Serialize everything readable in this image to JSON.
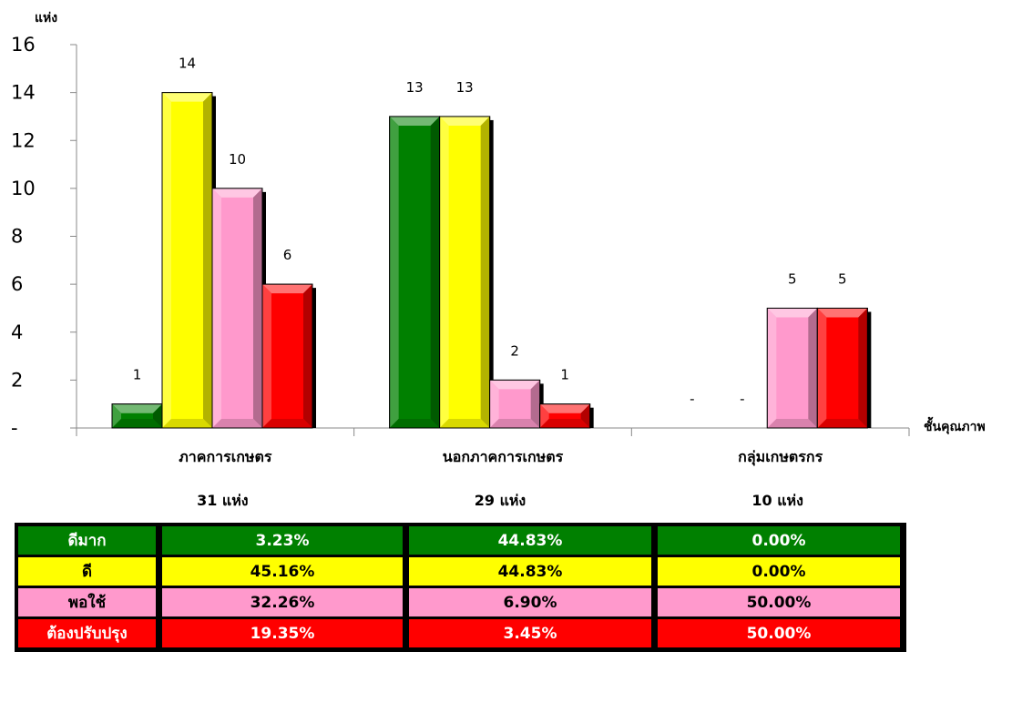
{
  "chart_data": {
    "type": "bar",
    "ylabel": "แห่ง",
    "xlabel": "ชั้นคุณภาพ",
    "ylim": [
      0,
      16
    ],
    "yticks": [
      "-",
      "2",
      "4",
      "6",
      "8",
      "10",
      "12",
      "14",
      "16"
    ],
    "categories": [
      "ภาคการเกษตร",
      "นอกภาคการเกษตร",
      "กลุ่มเกษตรกร"
    ],
    "category_totals": [
      "31  แห่ง",
      "29  แห่ง",
      "10  แห่ง"
    ],
    "series": [
      {
        "name": "ดีมาก",
        "color": "#008000",
        "values": [
          1,
          13,
          0
        ],
        "labels": [
          "1",
          "13",
          "-"
        ]
      },
      {
        "name": "ดี",
        "color": "#ffff00",
        "values": [
          14,
          13,
          0
        ],
        "labels": [
          "14",
          "13",
          "-"
        ]
      },
      {
        "name": "พอใช้",
        "color": "#ff99cc",
        "values": [
          10,
          2,
          5
        ],
        "labels": [
          "10",
          "2",
          "5"
        ]
      },
      {
        "name": "ต้องปรับปรุง",
        "color": "#ff0000",
        "values": [
          6,
          1,
          5
        ],
        "labels": [
          "6",
          "1",
          "5"
        ]
      }
    ]
  },
  "table": {
    "rows": [
      {
        "label": "ดีมาก",
        "bg": "#008000",
        "label_color": "#ffffff",
        "values": [
          "3.23%",
          "44.83%",
          "0.00%"
        ]
      },
      {
        "label": "ดี",
        "bg": "#ffff00",
        "label_color": "#000000",
        "values": [
          "45.16%",
          "44.83%",
          "0.00%"
        ]
      },
      {
        "label": "พอใช้",
        "bg": "#ff99cc",
        "label_color": "#000000",
        "values": [
          "32.26%",
          "6.90%",
          "50.00%"
        ]
      },
      {
        "label": "ต้องปรับปรุง",
        "bg": "#ff0000",
        "label_color": "#ffffff",
        "values": [
          "19.35%",
          "3.45%",
          "50.00%"
        ]
      }
    ]
  }
}
